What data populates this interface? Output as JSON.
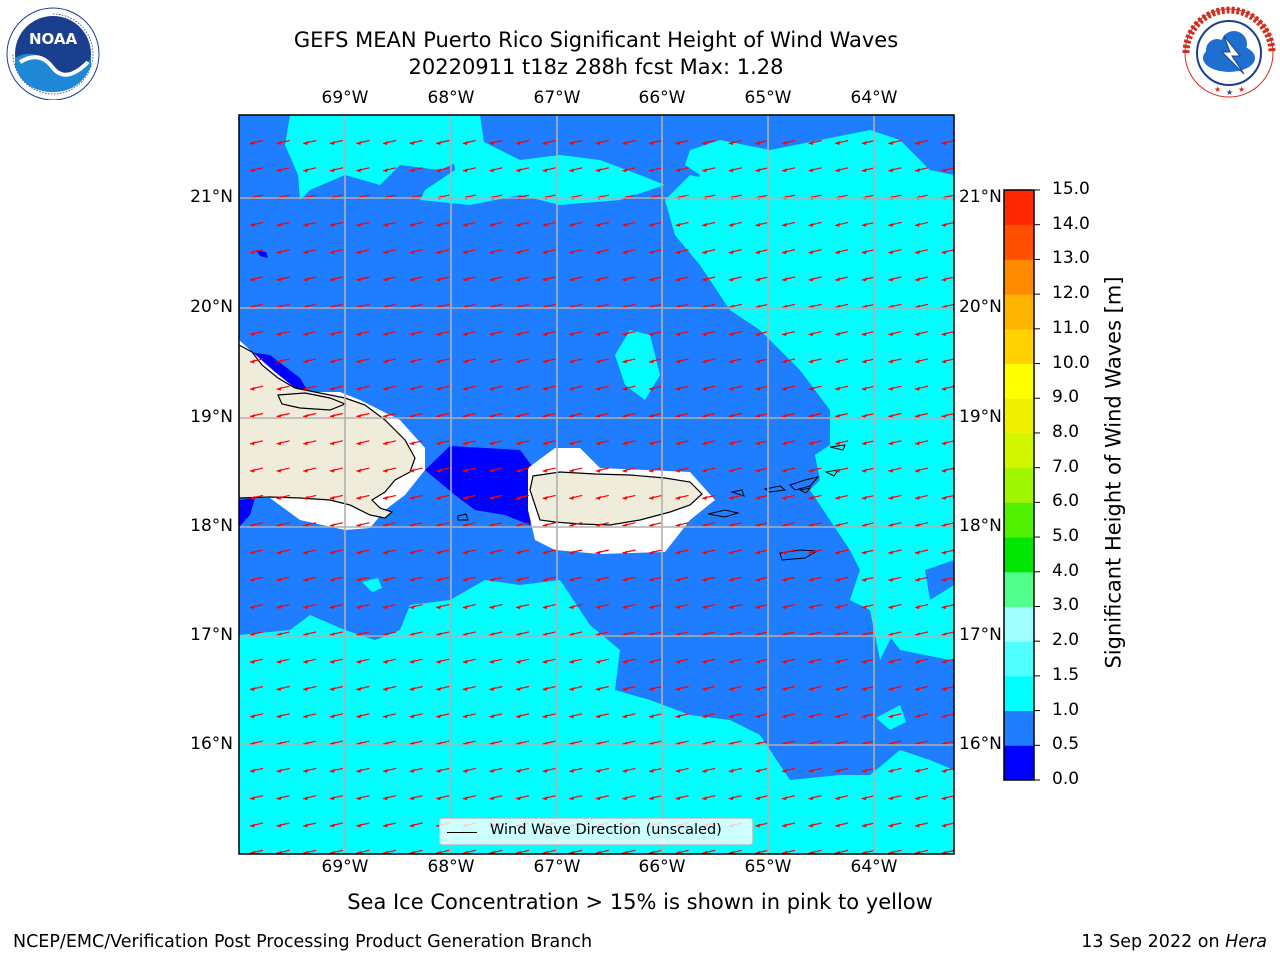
{
  "header": {
    "title_line1": "GEFS MEAN Puerto Rico Significant Height of Wind Waves",
    "title_line2": "20220911 t18z 288h fcst   Max: 1.28"
  },
  "logos": {
    "noaa": {
      "text": "NOAA",
      "ring_text": "NATIONAL OCEANIC AND ATMOSPHERIC ADMINISTRATION · U.S. DEPARTMENT OF COMMERCE"
    },
    "nws": {
      "ring_text": "NATIONAL WEATHER SERVICE"
    }
  },
  "map": {
    "lon_ticks": [
      "69°W",
      "68°W",
      "67°W",
      "66°W",
      "65°W",
      "64°W"
    ],
    "lat_ticks": [
      "21°N",
      "20°N",
      "19°N",
      "18°N",
      "17°N",
      "16°N"
    ],
    "legend_label": "Wind Wave Direction (unscaled)",
    "arrow_color": "#ff0000",
    "coast_color": "#000000",
    "land_color": "#efecdc"
  },
  "colorbar": {
    "title": "Significant Height of Wind Waves [m]",
    "levels": [
      "0.0",
      "0.5",
      "1.0",
      "1.5",
      "2.0",
      "3.0",
      "4.0",
      "5.0",
      "6.0",
      "7.0",
      "8.0",
      "9.0",
      "10.0",
      "11.0",
      "12.0",
      "13.0",
      "14.0",
      "15.0"
    ],
    "colors": [
      "#0000ff",
      "#1f7dff",
      "#00ffff",
      "#50ffff",
      "#a0ffff",
      "#50ff8c",
      "#00e600",
      "#50f000",
      "#a0f500",
      "#d2f500",
      "#f0f000",
      "#ffff00",
      "#ffd200",
      "#ffb400",
      "#ff8c00",
      "#ff5000",
      "#ff2800",
      "#ff0000"
    ]
  },
  "footer": {
    "note": "Sea Ice Concentration > 15% is shown in pink to yellow",
    "left": "NCEP/EMC/Verification Post Processing Product Generation Branch",
    "right_prefix": "13 Sep 2022 on ",
    "right_host": "Hera"
  }
}
